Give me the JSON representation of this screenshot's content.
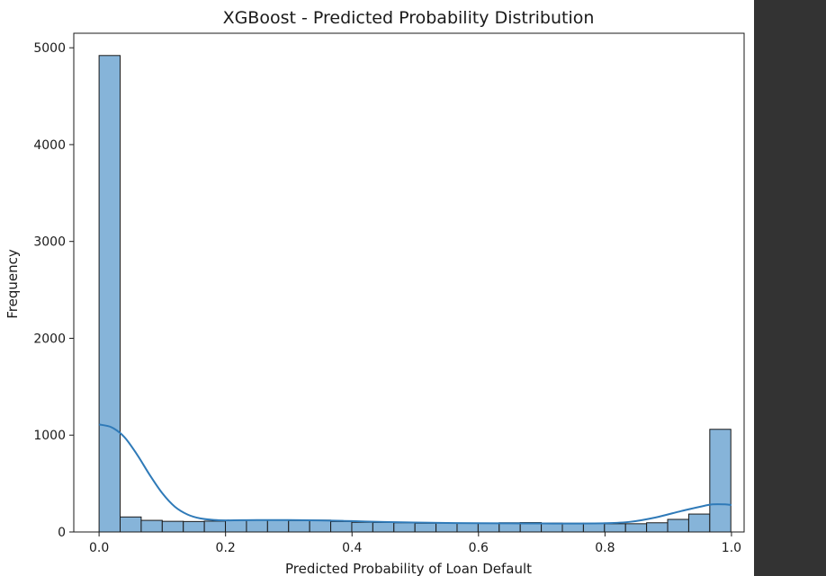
{
  "chart_data": {
    "type": "bar",
    "title": "XGBoost - Predicted Probability Distribution",
    "xlabel": "Predicted Probability of Loan Default",
    "ylabel": "Frequency",
    "xlim": [
      -0.04,
      1.02
    ],
    "ylim": [
      0,
      5150
    ],
    "x_ticks": [
      0.0,
      0.2,
      0.4,
      0.6,
      0.8,
      1.0
    ],
    "x_tick_labels": [
      "0.0",
      "0.2",
      "0.4",
      "0.6",
      "0.8",
      "1.0"
    ],
    "y_ticks": [
      0,
      1000,
      2000,
      3000,
      4000,
      5000
    ],
    "y_tick_labels": [
      "0",
      "1000",
      "2000",
      "3000",
      "4000",
      "5000"
    ],
    "bin_width": 0.0333,
    "bin_start": 0.0,
    "bins": 30,
    "values": [
      4920,
      155,
      120,
      110,
      108,
      112,
      120,
      125,
      122,
      118,
      122,
      108,
      100,
      98,
      95,
      90,
      92,
      90,
      88,
      95,
      97,
      92,
      90,
      90,
      85,
      85,
      95,
      130,
      185,
      1060
    ],
    "kde_x": [
      0.0,
      0.02,
      0.04,
      0.06,
      0.08,
      0.1,
      0.12,
      0.14,
      0.16,
      0.18,
      0.2,
      0.25,
      0.3,
      0.35,
      0.4,
      0.45,
      0.5,
      0.55,
      0.6,
      0.65,
      0.7,
      0.75,
      0.8,
      0.84,
      0.88,
      0.92,
      0.95,
      0.97,
      0.99,
      1.0
    ],
    "kde_y": [
      1110,
      1080,
      980,
      800,
      590,
      400,
      260,
      180,
      140,
      125,
      120,
      123,
      123,
      120,
      112,
      103,
      97,
      93,
      90,
      89,
      88,
      87,
      90,
      105,
      150,
      215,
      260,
      285,
      285,
      278
    ],
    "grid": false,
    "colors": {
      "bar_fill": "#86b4d9",
      "bar_edge": "#1a1a1a",
      "kde_line": "#2f7ab8",
      "side_panel": "#333333"
    }
  }
}
